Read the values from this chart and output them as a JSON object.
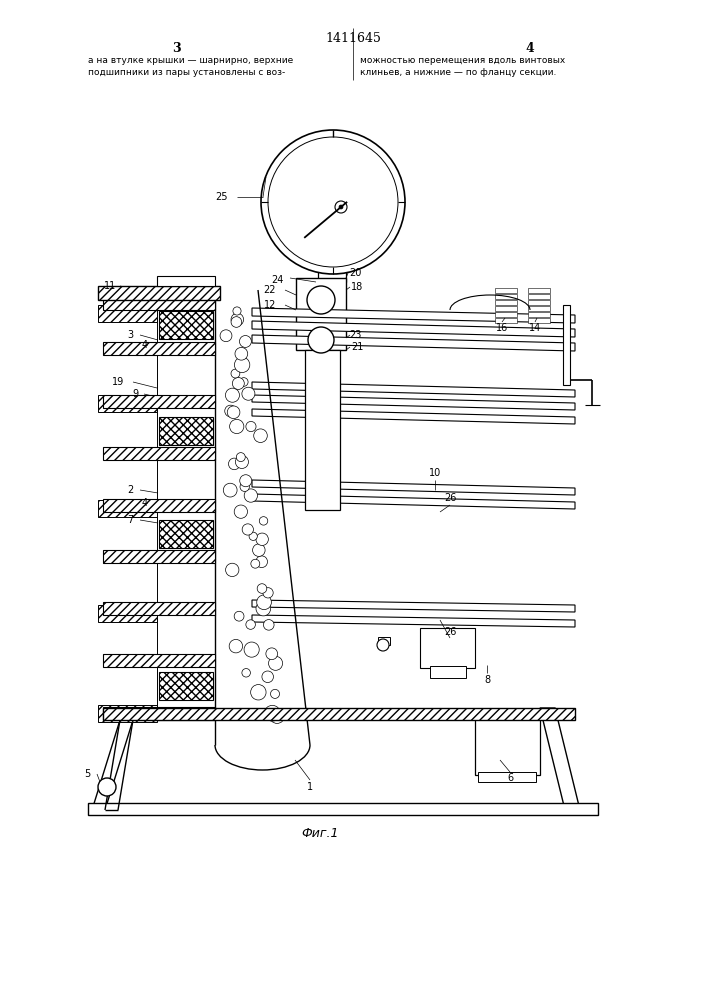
{
  "title": "1411645",
  "page_left": "3",
  "page_right": "4",
  "text_left": "а на втулке крышки — шарнирно, верхние\nподшипники из пары установлены с воз-",
  "text_right": "можностью перемещения вдоль винтовых\nклиньев, а нижние — по фланцу секции.",
  "figure_label": "Фиг.1",
  "background": "#ffffff",
  "line_color": "#000000"
}
